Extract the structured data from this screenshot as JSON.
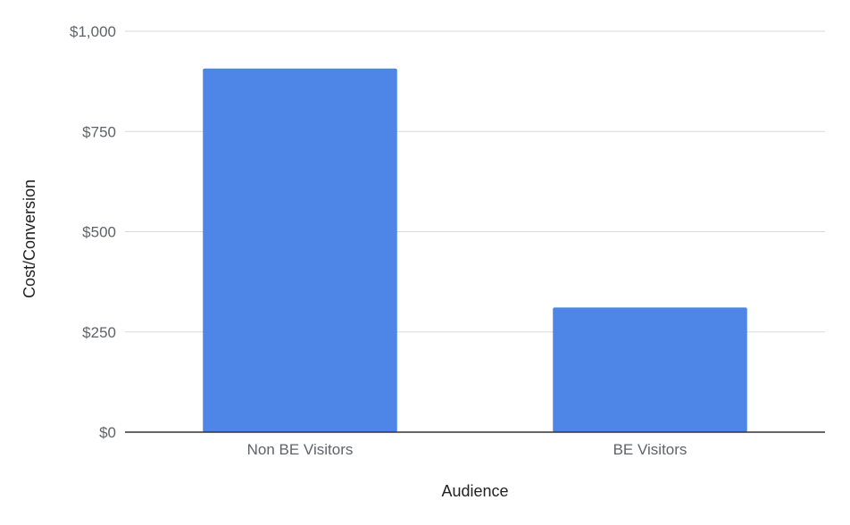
{
  "chart_data": {
    "type": "bar",
    "categories": [
      "Non BE Visitors",
      "BE Visitors"
    ],
    "series": [
      {
        "values": [
          907,
          311
        ]
      }
    ],
    "xlabel": "Audience",
    "ylabel": "Cost/Conversion",
    "ylim": [
      0,
      1000
    ],
    "yticks": [
      0,
      250,
      500,
      750,
      1000
    ],
    "ytick_labels": [
      "$0",
      "$250",
      "$500",
      "$750",
      "$1,000"
    ],
    "grid": true,
    "legend": "none",
    "colors": {
      "bar": "#4e86e8",
      "grid": "#d9d9d9",
      "baseline": "#333333"
    }
  }
}
